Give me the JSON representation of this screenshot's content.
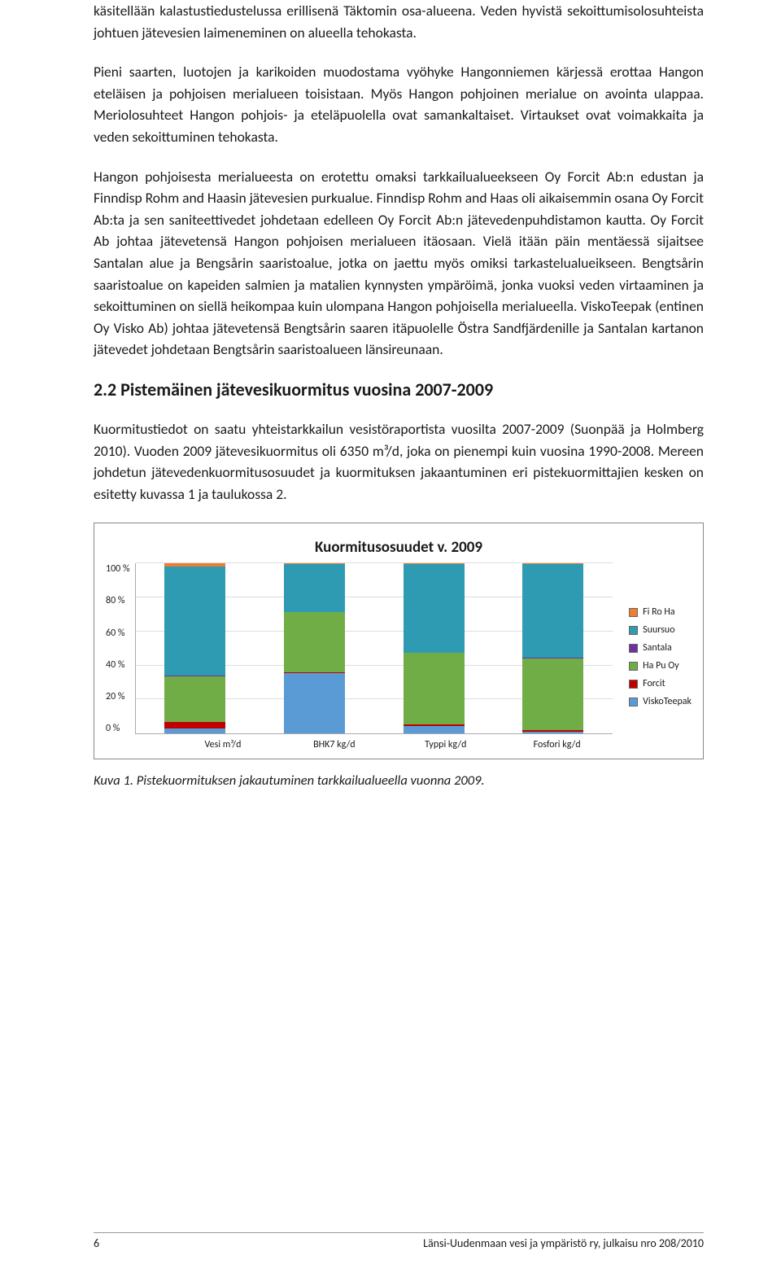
{
  "paragraphs": {
    "p1": "käsitellään kalastustiedustelussa erillisenä Täktomin osa-alueena. Veden hyvistä sekoittumisolosuhteista johtuen jätevesien laimeneminen on alueella tehokasta.",
    "p2": "Pieni saarten, luotojen ja karikoiden muodostama vyöhyke Hangonniemen kärjessä erottaa Hangon eteläisen ja pohjoisen merialueen toisistaan. Myös Hangon pohjoinen merialue on avointa ulappaa. Meriolosuhteet Hangon pohjois- ja eteläpuolella ovat samankaltaiset. Virtaukset ovat voimakkaita ja veden sekoittuminen tehokasta.",
    "p3": "Hangon pohjoisesta merialueesta on erotettu omaksi tarkkailualueekseen Oy Forcit Ab:n edustan ja Finndisp Rohm and Haasin jätevesien purkualue. Finndisp Rohm and Haas oli aikaisemmin osana Oy Forcit Ab:ta ja sen saniteettivedet johdetaan edelleen Oy Forcit Ab:n jätevedenpuhdistamon kautta. Oy Forcit Ab johtaa jätevetensä Hangon pohjoisen merialueen itäosaan. Vielä itään päin mentäessä sijaitsee Santalan alue ja Bengsårin saaristoalue, jotka on jaettu myös omiksi tarkastelualueikseen. Bengtsårin saaristoalue on kapeiden salmien ja matalien kynnysten ympäröimä, jonka vuoksi veden virtaaminen ja sekoittuminen on siellä heikompaa kuin ulompana Hangon pohjoisella merialueella. ViskoTeepak (entinen Oy Visko Ab) johtaa jätevetensä Bengtsårin saaren itäpuolelle Östra Sandfjärdenille ja Santalan kartanon jätevedet johdetaan Bengtsårin saaristoalueen länsireunaan.",
    "p4": "Kuormitustiedot on saatu yhteistarkkailun vesistöraportista vuosilta 2007-2009 (Suonpää ja Holmberg 2010). Vuoden 2009 jätevesikuormitus oli 6350 m³/d, joka on pienempi kuin vuosina 1990-2008. Mereen johdetun jätevedenkuormitusosuudet ja kuormituksen jakaantuminen eri pistekuormittajien kesken on esitetty kuvassa 1 ja taulukossa 2."
  },
  "heading": "2.2 Pistemäinen jätevesikuormitus vuosina 2007-2009",
  "chart": {
    "title": "Kuormitusosuudet v. 2009",
    "categories": [
      "Vesi m³/d",
      "BHK7 kg/d",
      "Typpi kg/d",
      "Fosfori kg/d"
    ],
    "y_ticks": [
      "100 %",
      "80 %",
      "60 %",
      "40 %",
      "20 %",
      "0 %"
    ],
    "legend": [
      "Fi Ro Ha",
      "Suursuo",
      "Santala",
      "Ha Pu Oy",
      "Forcit",
      "ViskoTeepak"
    ],
    "legend_colors": [
      "#ed7d31",
      "#2e9bb3",
      "#7030a0",
      "#70ad47",
      "#c00000",
      "#5b9bd5"
    ],
    "stacks": [
      {
        "FiRoHa": 2,
        "Suursuo": 64,
        "Santala": 0.3,
        "HaPuOy": 27,
        "Forcit": 3.7,
        "ViskoTeepak": 3
      },
      {
        "FiRoHa": 0.5,
        "Suursuo": 28,
        "Santala": 0.3,
        "HaPuOy": 35,
        "Forcit": 0.7,
        "ViskoTeepak": 35.5
      },
      {
        "FiRoHa": 0.3,
        "Suursuo": 52,
        "Santala": 0.2,
        "HaPuOy": 42,
        "Forcit": 1,
        "ViskoTeepak": 4.5
      },
      {
        "FiRoHa": 0.5,
        "Suursuo": 55,
        "Santala": 0.3,
        "HaPuOy": 42,
        "Forcit": 1.2,
        "ViskoTeepak": 1
      }
    ]
  },
  "caption_label": "Kuva 1.",
  "caption_text": " Pistekuormituksen jakautuminen tarkkailualueella vuonna 2009.",
  "footer_page": "6",
  "footer_right": "Länsi-Uudenmaan vesi ja ympäristö ry, julkaisu nro 208/2010"
}
